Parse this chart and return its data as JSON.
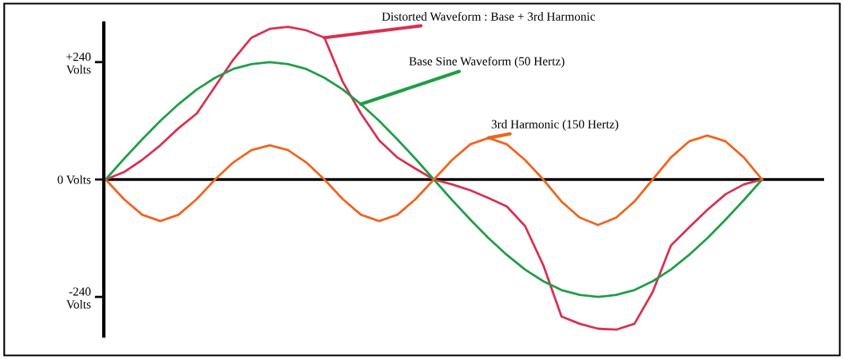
{
  "chart_data": {
    "type": "line",
    "categories": [
      null,
      null,
      null,
      null,
      null,
      null,
      null,
      null,
      null,
      null,
      null,
      null,
      null,
      null,
      null,
      null,
      null,
      null,
      null,
      null,
      null,
      null,
      null,
      null,
      null,
      null,
      null,
      null,
      null,
      null,
      null,
      null,
      null,
      null,
      null,
      null,
      null
    ],
    "series": [
      {
        "color": "#d9304f",
        "values": [
          0,
          15,
          40,
          70,
          105,
          135,
          190,
          245,
          290,
          308,
          312,
          305,
          290,
          200,
          135,
          80,
          45,
          22,
          0,
          -10,
          -22,
          -38,
          -55,
          -95,
          -175,
          -280,
          -295,
          -305,
          -307,
          -295,
          -230,
          -135,
          -98,
          -62,
          -30,
          -10,
          0
        ]
      },
      {
        "color": "#1f9e45",
        "values": [
          0,
          42,
          82,
          120,
          154,
          184,
          208,
          226,
          236,
          240,
          236,
          226,
          208,
          184,
          154,
          120,
          82,
          42,
          0,
          -42,
          -82,
          -120,
          -154,
          -184,
          -208,
          -226,
          -236,
          -240,
          -236,
          -226,
          -208,
          -184,
          -154,
          -120,
          -82,
          -42,
          0
        ]
      },
      {
        "color": "#f0641e",
        "values": [
          0,
          -40,
          -72,
          -85,
          -72,
          -40,
          0,
          35,
          60,
          70,
          60,
          35,
          0,
          -40,
          -72,
          -85,
          -72,
          -40,
          0,
          40,
          72,
          85,
          72,
          40,
          0,
          -45,
          -78,
          -93,
          -78,
          -45,
          0,
          45,
          78,
          90,
          78,
          45,
          0
        ]
      }
    ],
    "ylim": [
      -320,
      320
    ],
    "yticks": [
      {
        "value": 240,
        "label": "+240\nVolts"
      },
      {
        "value": 0,
        "label": "0 Volts"
      },
      {
        "value": -240,
        "label": "-240\nVolts"
      }
    ],
    "annotations": [
      "Distorted Waveform : Base + 3rd Harmonic",
      "Base Sine Waveform (50 Hertz)",
      "3rd Harmonic (150 Hertz)"
    ],
    "ref_lines": [
      {
        "axis": "y",
        "value": 0,
        "color": "#000000",
        "line_style": "solid"
      }
    ],
    "grid": false,
    "legend": false,
    "marker": "none",
    "line_style": "solid"
  }
}
